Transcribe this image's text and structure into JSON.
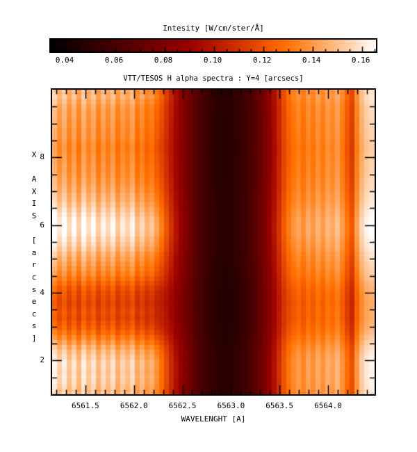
{
  "colorbar": {
    "title": "Intesity [W/cm/ster/Å]",
    "min": 0.0338,
    "max": 0.1656,
    "major_ticks": [
      0.04,
      0.06,
      0.08,
      0.1,
      0.12,
      0.14,
      0.16
    ],
    "tick_labels": [
      "0.04",
      "0.06",
      "0.08",
      "0.10",
      "0.12",
      "0.14",
      "0.16"
    ],
    "minor_step": 0.005
  },
  "plot": {
    "title": "VTT/TESOS H alpha spectra : Y=4 [arcsecs]",
    "xlabel": "WAVELENGHT [A]",
    "ylabel": "X AXIS [arcsecs]",
    "x_major_ticks": [
      6561.5,
      6562.0,
      6562.5,
      6563.0,
      6563.5,
      6564.0
    ],
    "x_tick_labels": [
      "6561.5",
      "6562.0",
      "6562.5",
      "6563.0",
      "6563.5",
      "6564.0"
    ],
    "x_minor_step": 0.1,
    "y_major_ticks": [
      8,
      6,
      4,
      2
    ],
    "y_tick_labels": [
      "8",
      "6",
      "4",
      "2"
    ],
    "y_minor_step": 0.5
  },
  "chart_data": {
    "type": "heatmap",
    "title": "VTT/TESOS H alpha spectra : Y=4 [arcsecs]",
    "xlabel": "WAVELENGHT [A]",
    "ylabel": "X AXIS [arcsecs]",
    "colorbar_label": "Intesity [W/cm/ster/Å]",
    "xlim": [
      6561.157,
      6564.48
    ],
    "ylim": [
      1.0,
      10.0
    ],
    "value_range": [
      0.0338,
      0.1656
    ],
    "wavelength_start": 6561.182,
    "wavelength_step": 0.0503,
    "grid": false,
    "colormap": "black-red-orange-white heat",
    "spectral_profile": [
      0.152,
      0.143,
      0.15,
      0.14,
      0.148,
      0.138,
      0.15,
      0.141,
      0.148,
      0.137,
      0.146,
      0.14,
      0.147,
      0.136,
      0.144,
      0.139,
      0.146,
      0.134,
      0.14,
      0.132,
      0.136,
      0.128,
      0.121,
      0.112,
      0.103,
      0.094,
      0.086,
      0.079,
      0.072,
      0.066,
      0.061,
      0.057,
      0.053,
      0.05,
      0.049,
      0.048,
      0.049,
      0.051,
      0.053,
      0.056,
      0.06,
      0.065,
      0.071,
      0.078,
      0.086,
      0.096,
      0.107,
      0.118,
      0.126,
      0.132,
      0.136,
      0.131,
      0.138,
      0.133,
      0.14,
      0.134,
      0.141,
      0.137,
      0.143,
      0.134,
      0.124,
      0.116,
      0.135,
      0.148,
      0.155,
      0.158
    ],
    "wing_weight": [
      1,
      1,
      1,
      1,
      1,
      1,
      1,
      1,
      1,
      1,
      1,
      1,
      1,
      1,
      1,
      1,
      1,
      1,
      1,
      1,
      1,
      1,
      0.85,
      0.7,
      0.55,
      0.45,
      0.35,
      0.28,
      0.15,
      0.15,
      0.15,
      0.15,
      0.15,
      0.15,
      0.15,
      0.15,
      0.15,
      0.15,
      0.15,
      0.15,
      0.15,
      0.15,
      0.15,
      0.15,
      0.2,
      0.25,
      0.3,
      0.35,
      0.4,
      0.45,
      0.45,
      0.45,
      0.45,
      0.45,
      0.45,
      0.45,
      0.45,
      0.45,
      0.45,
      0.45,
      0.45,
      0.45,
      0.45,
      0.45,
      0.45,
      0.45
    ],
    "row_modulation": [
      1.02,
      1.03,
      1.01,
      0.99,
      0.98,
      0.98,
      0.97,
      0.97,
      0.96,
      0.96,
      0.95,
      0.94,
      0.94,
      0.95,
      0.95,
      0.96,
      0.96,
      0.97,
      0.98,
      0.99,
      1.0,
      1.02,
      1.03,
      1.05,
      1.07,
      1.09,
      1.11,
      1.12,
      1.12,
      1.11,
      1.09,
      1.07,
      1.05,
      1.02,
      1.0,
      0.98,
      0.96,
      0.94,
      0.91,
      0.88,
      0.85,
      0.83,
      0.82,
      0.81,
      0.82,
      0.83,
      0.82,
      0.84,
      0.86,
      0.89,
      0.93,
      0.97,
      1.01,
      1.04,
      1.06,
      1.08,
      1.08,
      1.07,
      1.08,
      1.07,
      1.06,
      1.05
    ],
    "annotations": [
      "dark H-alpha line core near 6562.8-6563.0 A",
      "dark telluric line near 6564.2 A",
      "bright continuum band at x = 5.2-6.7 arcsec",
      "dark lane at x = 2.6-4.2 arcsec"
    ]
  }
}
